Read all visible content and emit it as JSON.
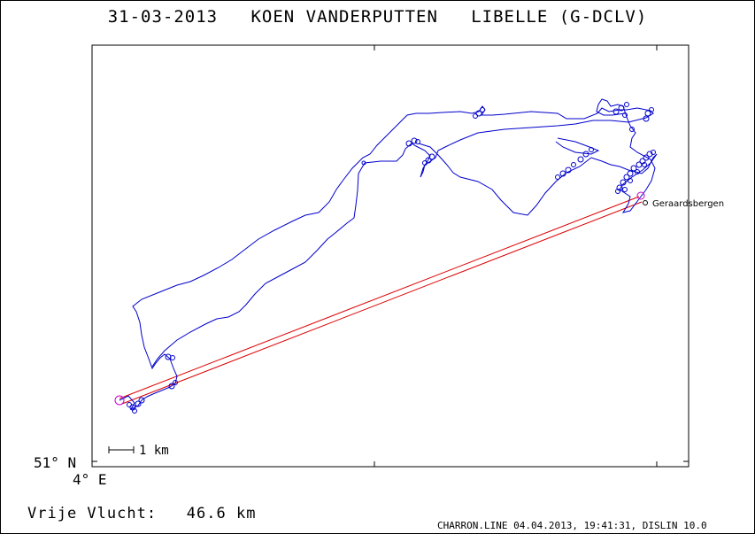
{
  "header": {
    "date": "31-03-2013",
    "pilot": "KOEN VANDERPUTTEN",
    "glider": "LIBELLE (G-DCLV)"
  },
  "axes": {
    "lat_label": "51° N",
    "lon_label": "4° E"
  },
  "scale_bar": {
    "label": "1 km"
  },
  "place": {
    "name": "Geraardsbergen"
  },
  "footer": {
    "distance_label": "Vrije Vlucht:",
    "distance_value": "46.6 km",
    "program": "CHARRON.LINE 04.04.2013, 19:41:31, DISLIN 10.0"
  },
  "colors": {
    "track": "#0000cc",
    "task_line": "#dd0000",
    "waypoint": "#cc00cc",
    "frame": "#000000"
  }
}
